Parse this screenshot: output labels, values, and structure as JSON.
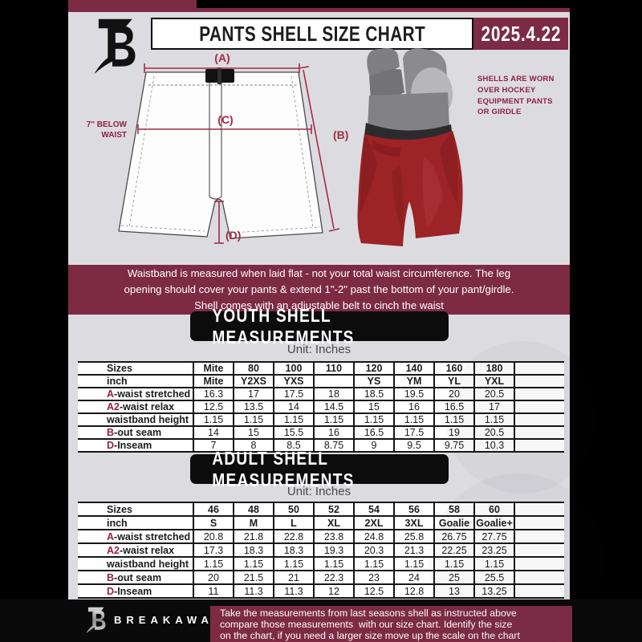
{
  "page": {
    "title": "PANTS SHELL SIZE CHART",
    "date": "2025.4.22",
    "brand": "BREAKAWAY"
  },
  "colors": {
    "maroon": "#7d2b45",
    "diagram_line": "#a22c47",
    "table_prefix": "#96213c",
    "background": "#dcdce0",
    "shell_red": "#9c2326"
  },
  "diagram": {
    "label_a": "(A)",
    "label_b": "(B)",
    "label_c": "(C)",
    "label_d": "(D)",
    "below_waist_line1": "7'' BELOW",
    "below_waist_line2": "WAIST",
    "note_lines": [
      "SHELLS ARE WORN",
      "OVER HOCKEY",
      "EQUIPMENT PANTS",
      "OR GIRDLE"
    ]
  },
  "info_banner": {
    "lines": [
      "Waistband is measured when laid flat - not your total waist circumference. The leg",
      "opening should cover your pants & extend 1\"-2\" past the bottom of your pant/girdle.",
      "Shell comes with an adjustable belt to cinch the waist"
    ]
  },
  "youth": {
    "heading": "YOUTH SHELL MEASUREMENTS",
    "unit": "Unit: Inches"
  },
  "adult": {
    "heading": "ADULT SHELL MEASUREMENTS",
    "unit": "Unit: Inches"
  },
  "youth_table": {
    "rows": [
      {
        "prefix": "",
        "label": "Sizes",
        "header": true,
        "values": [
          "Mite",
          "80",
          "100",
          "110",
          "120",
          "140",
          "160",
          "180"
        ]
      },
      {
        "prefix": "",
        "label": "inch",
        "header": true,
        "values": [
          "Mite",
          "Y2XS",
          "YXS",
          "",
          "YS",
          "YM",
          "YL",
          "YXL"
        ]
      },
      {
        "prefix": "A",
        "label": "-waist stretched",
        "header": false,
        "values": [
          "16.3",
          "17",
          "17.5",
          "18",
          "18.5",
          "19.5",
          "20",
          "20.5"
        ]
      },
      {
        "prefix": "A2",
        "label": "-waist relax",
        "header": false,
        "values": [
          "12.5",
          "13.5",
          "14",
          "14.5",
          "15",
          "16",
          "16.5",
          "17"
        ]
      },
      {
        "prefix": "",
        "label": "waistband height",
        "header": false,
        "values": [
          "1.15",
          "1.15",
          "1.15",
          "1.15",
          "1.15",
          "1.15",
          "1.15",
          "1.15"
        ]
      },
      {
        "prefix": "B",
        "label": "-out seam",
        "header": false,
        "values": [
          "14",
          "15",
          "15.5",
          "16",
          "16.5",
          "17.5",
          "19",
          "20.5"
        ]
      },
      {
        "prefix": "D",
        "label": "-Inseam",
        "header": false,
        "values": [
          "7",
          "8",
          "8.5",
          "8.75",
          "9",
          "9.5",
          "9.75",
          "10.3"
        ]
      }
    ]
  },
  "adult_table": {
    "rows": [
      {
        "prefix": "",
        "label": "Sizes",
        "header": true,
        "values": [
          "46",
          "48",
          "50",
          "52",
          "54",
          "56",
          "58",
          "60"
        ]
      },
      {
        "prefix": "",
        "label": "inch",
        "header": true,
        "values": [
          "S",
          "M",
          "L",
          "XL",
          "2XL",
          "3XL",
          "Goalie",
          "Goalie+"
        ]
      },
      {
        "prefix": "A",
        "label": "-waist stretched",
        "header": false,
        "values": [
          "20.8",
          "21.8",
          "22.8",
          "23.8",
          "24.8",
          "25.8",
          "26.75",
          "27.75"
        ]
      },
      {
        "prefix": "A2",
        "label": "-waist relax",
        "header": false,
        "values": [
          "17.3",
          "18.3",
          "18.3",
          "19.3",
          "20.3",
          "21.3",
          "22.25",
          "23.25"
        ]
      },
      {
        "prefix": "",
        "label": "waistband height",
        "header": false,
        "values": [
          "1.15",
          "1.15",
          "1.15",
          "1.15",
          "1.15",
          "1.15",
          "1.15",
          "1.15"
        ]
      },
      {
        "prefix": "B",
        "label": "-out seam",
        "header": false,
        "values": [
          "20",
          "21.5",
          "21",
          "22.3",
          "23",
          "24",
          "25",
          "25.5"
        ]
      },
      {
        "prefix": "D",
        "label": "-Inseam",
        "header": false,
        "values": [
          "11",
          "11.3",
          "11.3",
          "12",
          "12.5",
          "12.8",
          "13",
          "13.25"
        ]
      }
    ]
  },
  "footer": {
    "lines": [
      "Take the measurements from last seasons shell as instructed above",
      "compare those measurements  with our size chart. Identify the size",
      "on the chart, if you need a larger size move up the scale on the chart"
    ]
  }
}
